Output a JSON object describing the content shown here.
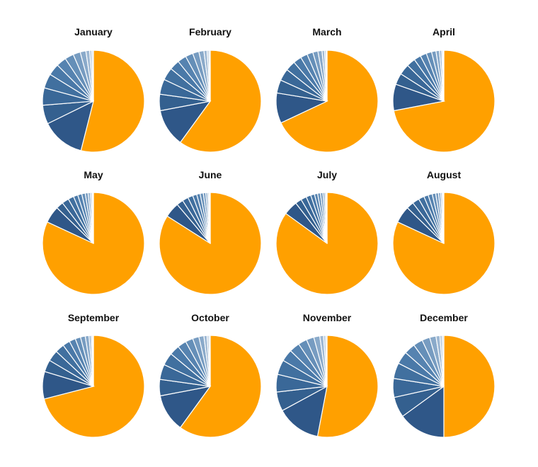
{
  "chart_data": [
    {
      "type": "pie",
      "title": "January",
      "values": [
        54,
        13.8,
        6.0,
        5.5,
        4.6,
        3.7,
        3.2,
        2.8,
        2.3,
        1.8,
        1.2,
        0.7,
        0.5
      ]
    },
    {
      "type": "pie",
      "title": "February",
      "values": [
        60,
        12,
        5.2,
        4.8,
        4,
        3.2,
        2.8,
        2.4,
        2,
        1.6,
        1,
        0.6,
        0.4
      ]
    },
    {
      "type": "pie",
      "title": "March",
      "values": [
        68,
        9.6,
        4.2,
        3.8,
        3.2,
        2.6,
        2.2,
        1.9,
        1.6,
        1.3,
        0.8,
        0.5,
        0.3
      ]
    },
    {
      "type": "pie",
      "title": "April",
      "values": [
        72,
        8.4,
        3.6,
        3.4,
        2.8,
        2.2,
        2,
        1.7,
        1.4,
        1.1,
        0.7,
        0.4,
        0.3
      ]
    },
    {
      "type": "pie",
      "title": "May",
      "values": [
        82,
        5.4,
        2.3,
        2.2,
        1.8,
        1.4,
        1.3,
        1.1,
        0.9,
        0.7,
        0.5,
        0.3,
        0.2
      ]
    },
    {
      "type": "pie",
      "title": "June",
      "values": [
        84,
        4.8,
        2.1,
        1.9,
        1.6,
        1.3,
        1.1,
        1,
        0.8,
        0.6,
        0.4,
        0.2,
        0.2
      ]
    },
    {
      "type": "pie",
      "title": "July",
      "values": [
        85,
        4.5,
        2,
        1.8,
        1.5,
        1.2,
        1,
        0.9,
        0.8,
        0.6,
        0.4,
        0.2,
        0.1
      ]
    },
    {
      "type": "pie",
      "title": "August",
      "values": [
        82,
        5.4,
        2.3,
        2.2,
        1.8,
        1.4,
        1.3,
        1.1,
        0.9,
        0.7,
        0.5,
        0.3,
        0.2
      ]
    },
    {
      "type": "pie",
      "title": "September",
      "values": [
        71,
        8.7,
        3.8,
        3.5,
        2.9,
        2.3,
        2,
        1.7,
        1.5,
        1.2,
        0.7,
        0.4,
        0.3
      ]
    },
    {
      "type": "pie",
      "title": "October",
      "values": [
        60,
        12,
        5.2,
        4.8,
        4,
        3.2,
        2.8,
        2.4,
        2,
        1.6,
        1,
        0.6,
        0.4
      ]
    },
    {
      "type": "pie",
      "title": "November",
      "values": [
        53,
        14.1,
        6.1,
        5.6,
        4.7,
        3.8,
        3.3,
        2.8,
        2.4,
        1.9,
        1.2,
        0.7,
        0.4
      ]
    },
    {
      "type": "pie",
      "title": "December",
      "values": [
        50,
        15,
        6.5,
        6,
        5,
        4,
        3.5,
        3,
        2.5,
        2,
        1.25,
        0.75,
        0.5
      ]
    }
  ],
  "colors": {
    "highlight": "#FFA000",
    "others": [
      "#2F5788",
      "#34608F",
      "#3A6898",
      "#41709F",
      "#4A79A8",
      "#5683B0",
      "#658FB8",
      "#779CC1",
      "#8AAACA",
      "#9EB8D3",
      "#B4C8DD",
      "#CCD9E8"
    ]
  }
}
